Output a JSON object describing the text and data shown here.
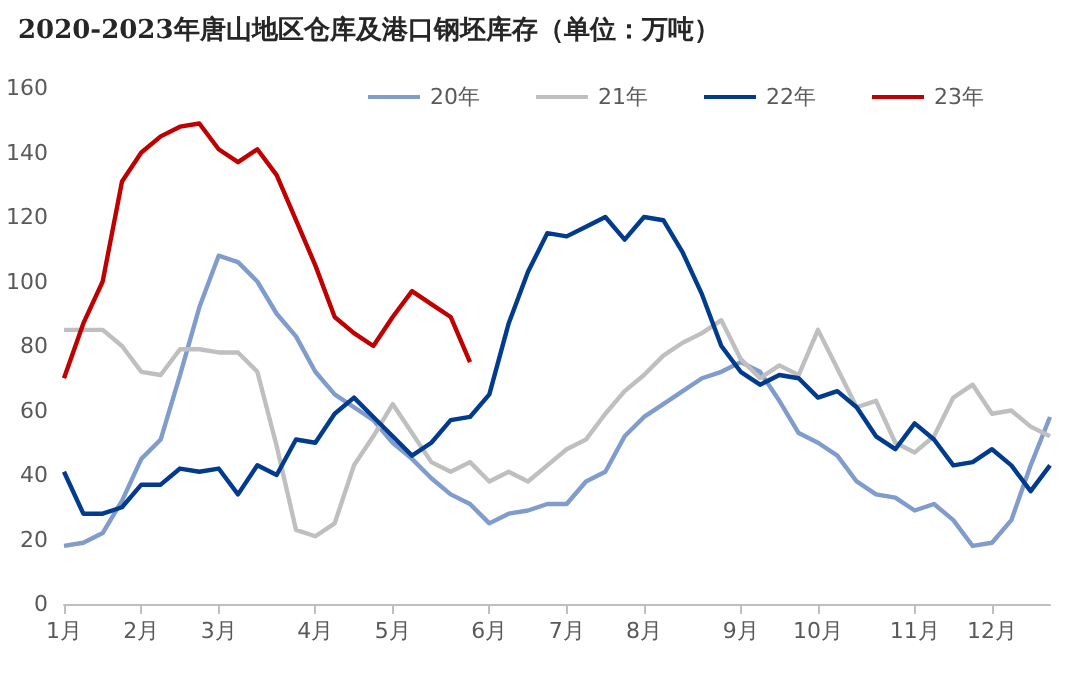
{
  "chart_data": {
    "type": "line",
    "title": "2020-2023年唐山地区仓库及港口钢坯库存（单位：万吨）",
    "categories": [
      "1月",
      null,
      null,
      null,
      "2月",
      null,
      null,
      null,
      "3月",
      null,
      null,
      null,
      null,
      "4月",
      null,
      null,
      null,
      "5月",
      null,
      null,
      null,
      null,
      "6月",
      null,
      null,
      null,
      "7月",
      null,
      null,
      null,
      "8月",
      null,
      null,
      null,
      null,
      "9月",
      null,
      null,
      null,
      "10月",
      null,
      null,
      null,
      null,
      "11月",
      null,
      null,
      null,
      "12月",
      null,
      null,
      null
    ],
    "series": [
      {
        "name": "20年",
        "color": "#7f9ccc",
        "values": [
          18,
          19,
          22,
          32,
          45,
          51,
          71,
          92,
          108,
          106,
          100,
          90,
          83,
          72,
          65,
          61,
          57,
          50,
          45,
          39,
          34,
          31,
          25,
          28,
          29,
          31,
          31,
          38,
          41,
          52,
          58,
          62,
          66,
          70,
          72,
          75,
          72,
          63,
          53,
          50,
          46,
          38,
          34,
          33,
          29,
          31,
          26,
          18,
          19,
          26,
          43,
          58
        ]
      },
      {
        "name": "21年",
        "color": "#bfbfbf",
        "values": [
          85,
          85,
          85,
          80,
          72,
          71,
          79,
          79,
          78,
          78,
          72,
          49,
          23,
          21,
          25,
          43,
          52,
          62,
          53,
          44,
          41,
          44,
          38,
          41,
          38,
          43,
          48,
          51,
          59,
          66,
          71,
          77,
          81,
          84,
          88,
          76,
          70,
          74,
          71,
          85,
          73,
          61,
          63,
          50,
          47,
          52,
          64,
          68,
          59,
          60,
          55,
          52
        ]
      },
      {
        "name": "22年",
        "color": "#003b8e",
        "values": [
          41,
          28,
          28,
          30,
          37,
          37,
          42,
          41,
          42,
          34,
          43,
          40,
          51,
          50,
          59,
          64,
          58,
          52,
          46,
          50,
          57,
          58,
          65,
          87,
          103,
          115,
          114,
          117,
          120,
          113,
          120,
          119,
          109,
          96,
          80,
          72,
          68,
          71,
          70,
          64,
          66,
          61,
          52,
          48,
          56,
          51,
          43,
          44,
          48,
          43,
          35,
          43
        ]
      },
      {
        "name": "23年",
        "color": "#c00000",
        "values": [
          70,
          87,
          100,
          131,
          140,
          145,
          148,
          149,
          141,
          137,
          141,
          133,
          119,
          105,
          89,
          84,
          80,
          89,
          97,
          93,
          89,
          75,
          null,
          null,
          null,
          null,
          null,
          null,
          null,
          null,
          null,
          null,
          null,
          null,
          null,
          null,
          null,
          null,
          null,
          null,
          null,
          null,
          null,
          null,
          null,
          null,
          null,
          null,
          null,
          null,
          null,
          null
        ]
      }
    ],
    "ylim": [
      0,
      160
    ],
    "yticks": [
      0,
      20,
      40,
      60,
      80,
      100,
      120,
      140,
      160
    ],
    "grid": false,
    "legend": "top right",
    "marker": "none",
    "line_style": "solid"
  }
}
